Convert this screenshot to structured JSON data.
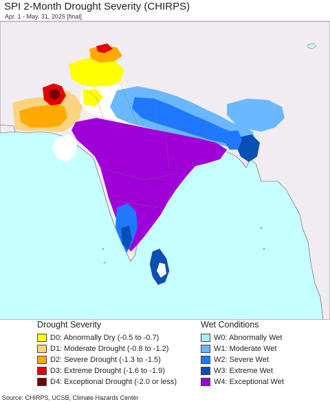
{
  "header": {
    "title": "SPI 2-Month Drought Severity (CHIRPS)",
    "subtitle": "Apr. 1 - May. 31, 2025 [final]"
  },
  "map": {
    "ocean_color": "#c6ffff",
    "land_color": "#f0ecf2",
    "border_color": "#555555"
  },
  "legend": {
    "drought": {
      "heading": "Drought Severity",
      "items": [
        {
          "label": "D0: Abnormally Dry (-0.5 to -0.7)",
          "color": "#ffff00"
        },
        {
          "label": "D1: Moderate Drought (-0.8 to -1.2)",
          "color": "#fcd37f"
        },
        {
          "label": "D2: Severe Drought (-1.3 to -1.5)",
          "color": "#ffaa00"
        },
        {
          "label": "D3: Extreme Drought (-1.6 to -1.9)",
          "color": "#e60000"
        },
        {
          "label": "D4: Exceptional Drought (-2.0 or less)",
          "color": "#730000"
        }
      ]
    },
    "wet": {
      "heading": "Wet Conditions",
      "items": [
        {
          "label": "W0: Abnormally Wet",
          "color": "#aaeeff"
        },
        {
          "label": "W1: Moderate Wet",
          "color": "#6ab8ff"
        },
        {
          "label": "W2: Severe Wet",
          "color": "#1f78ff"
        },
        {
          "label": "W3: Extreme Wet",
          "color": "#0a4fb5"
        },
        {
          "label": "W4: Exceptional Wet",
          "color": "#a000d8"
        }
      ]
    }
  },
  "footer": {
    "source": "Source: CHIRPS, UCSB, Climate Hazards Center"
  }
}
